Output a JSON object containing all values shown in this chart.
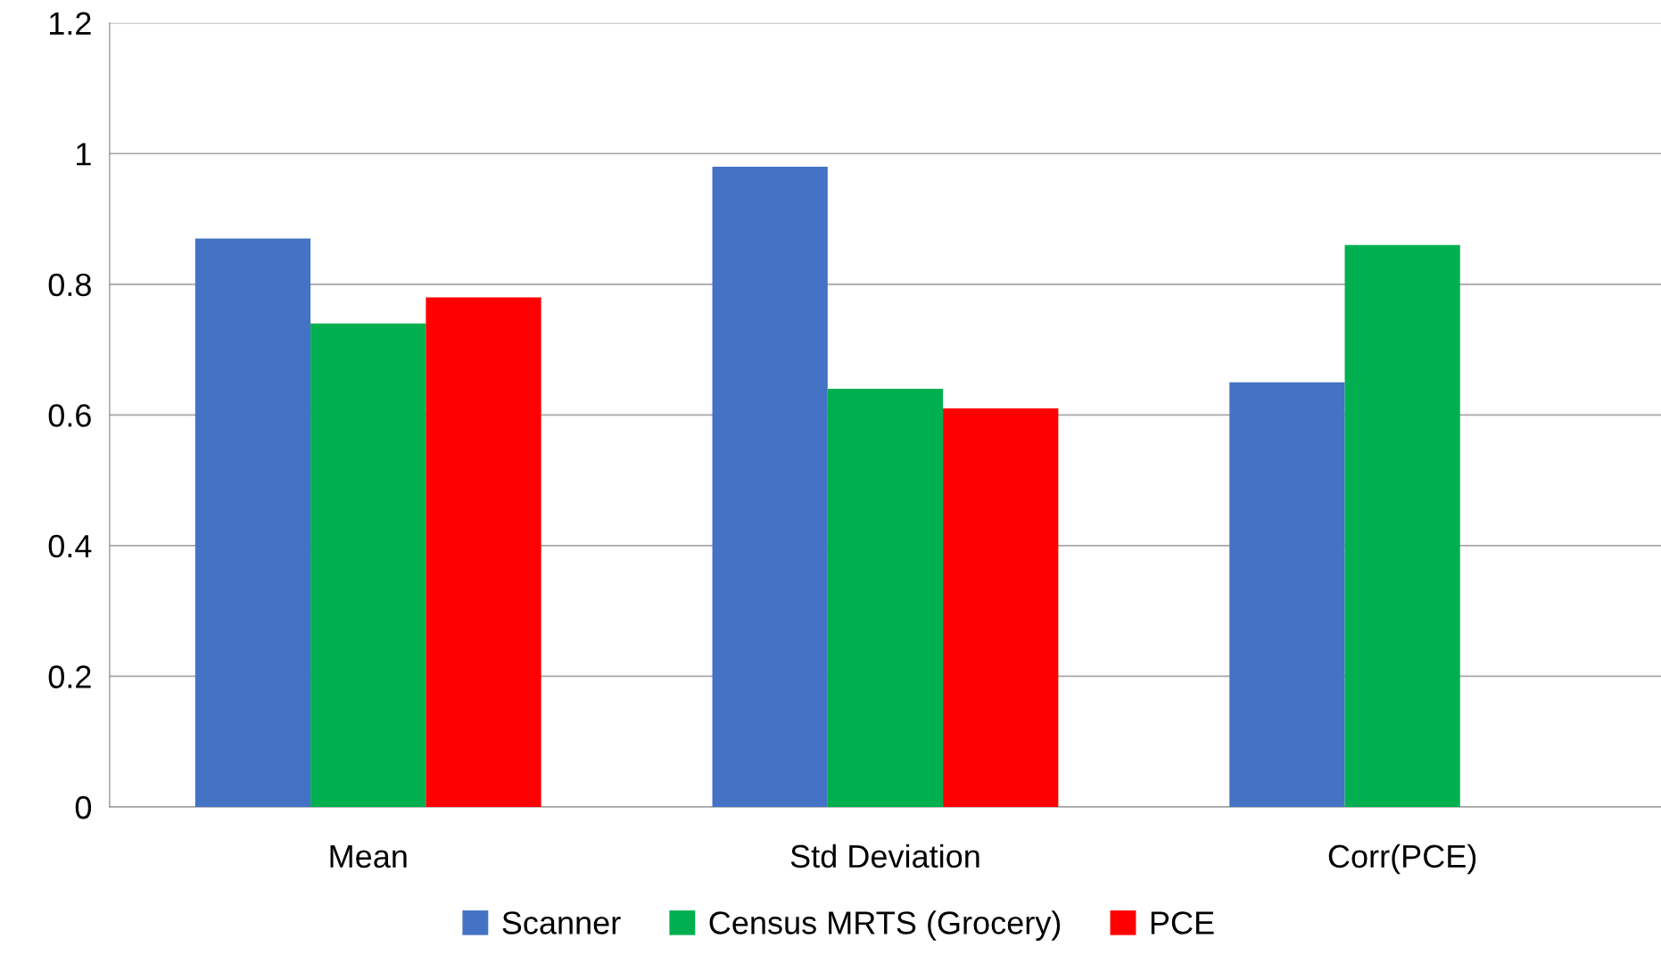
{
  "chart_data": {
    "type": "bar",
    "categories": [
      "Mean",
      "Std Deviation",
      "Corr(PCE)"
    ],
    "series": [
      {
        "name": "Scanner",
        "color": "#4472c4",
        "values": [
          0.87,
          0.98,
          0.65
        ]
      },
      {
        "name": "Census MRTS (Grocery)",
        "color": "#00b050",
        "values": [
          0.74,
          0.64,
          0.86
        ]
      },
      {
        "name": "PCE",
        "color": "#ff0000",
        "values": [
          0.78,
          0.61,
          null
        ]
      }
    ],
    "ylim": [
      0,
      1.2
    ],
    "yticks": [
      0,
      0.2,
      0.4,
      0.6,
      0.8,
      1,
      1.2
    ],
    "grid": "y",
    "legend": "bottom"
  }
}
